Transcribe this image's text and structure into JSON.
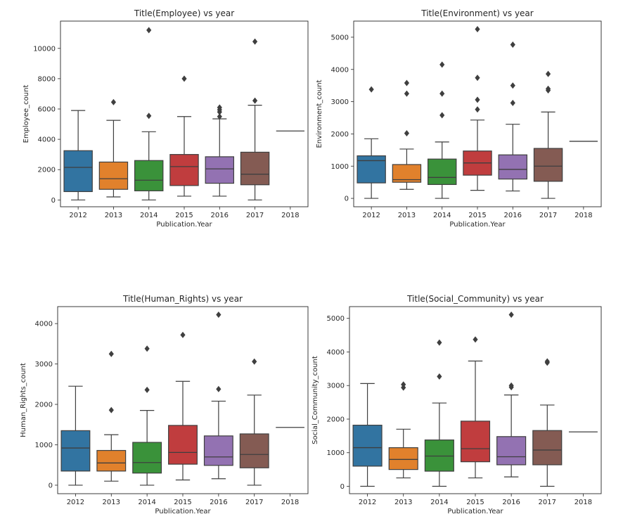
{
  "figure": {
    "layout": "2x2 grid of box plots"
  },
  "chart_data": [
    {
      "type": "box",
      "title": "Title(Employee) vs year",
      "xlabel": "Publication.Year",
      "ylabel": "Employee_count",
      "categories": [
        "2012",
        "2013",
        "2014",
        "2015",
        "2016",
        "2017",
        "2018"
      ],
      "ylim": [
        -450,
        11800
      ],
      "yticks": [
        0,
        2000,
        4000,
        6000,
        8000,
        10000
      ],
      "boxes": [
        {
          "category": "2012",
          "whisker_low": 0,
          "q1": 550,
          "median": 2150,
          "q3": 3250,
          "whisker_high": 5900,
          "outliers": [],
          "color": "#3274a1"
        },
        {
          "category": "2013",
          "whisker_low": 200,
          "q1": 700,
          "median": 1400,
          "q3": 2500,
          "whisker_high": 5250,
          "outliers": [
            6450
          ],
          "color": "#e1812c"
        },
        {
          "category": "2014",
          "whisker_low": 0,
          "q1": 600,
          "median": 1300,
          "q3": 2600,
          "whisker_high": 4500,
          "outliers": [
            5550,
            11200
          ],
          "color": "#3a923a"
        },
        {
          "category": "2015",
          "whisker_low": 250,
          "q1": 950,
          "median": 2200,
          "q3": 3000,
          "whisker_high": 5500,
          "outliers": [
            8000
          ],
          "color": "#c03d3e"
        },
        {
          "category": "2016",
          "whisker_low": 250,
          "q1": 1100,
          "median": 2050,
          "q3": 2850,
          "whisker_high": 5350,
          "outliers": [
            5500,
            5800,
            5950,
            6100
          ],
          "color": "#9372b2"
        },
        {
          "category": "2017",
          "whisker_low": 0,
          "q1": 1000,
          "median": 1700,
          "q3": 3150,
          "whisker_high": 6250,
          "outliers": [
            6550,
            10450
          ],
          "color": "#845b53"
        },
        {
          "category": "2018",
          "whisker_low": 4550,
          "q1": 4550,
          "median": 4550,
          "q3": 4550,
          "whisker_high": 4550,
          "outliers": [],
          "color": "#d684bd"
        }
      ]
    },
    {
      "type": "box",
      "title": "Title(Environment) vs year",
      "xlabel": "Publication.Year",
      "ylabel": "Environment_count",
      "categories": [
        "2012",
        "2013",
        "2014",
        "2015",
        "2016",
        "2017",
        "2018"
      ],
      "ylim": [
        -260,
        5500
      ],
      "yticks": [
        0,
        1000,
        2000,
        3000,
        4000,
        5000
      ],
      "boxes": [
        {
          "category": "2012",
          "whisker_low": 0,
          "q1": 480,
          "median": 1170,
          "q3": 1320,
          "whisker_high": 1850,
          "outliers": [
            3380
          ],
          "color": "#3274a1"
        },
        {
          "category": "2013",
          "whisker_low": 280,
          "q1": 500,
          "median": 580,
          "q3": 1050,
          "whisker_high": 1530,
          "outliers": [
            2020,
            3250,
            3580
          ],
          "color": "#e1812c"
        },
        {
          "category": "2014",
          "whisker_low": 0,
          "q1": 430,
          "median": 650,
          "q3": 1220,
          "whisker_high": 1750,
          "outliers": [
            2580,
            3250,
            4150
          ],
          "color": "#3a923a"
        },
        {
          "category": "2015",
          "whisker_low": 250,
          "q1": 720,
          "median": 1100,
          "q3": 1470,
          "whisker_high": 2430,
          "outliers": [
            2760,
            3060,
            3740,
            5250
          ],
          "color": "#c03d3e"
        },
        {
          "category": "2016",
          "whisker_low": 230,
          "q1": 600,
          "median": 900,
          "q3": 1350,
          "whisker_high": 2300,
          "outliers": [
            2960,
            3500,
            4770
          ],
          "color": "#9372b2"
        },
        {
          "category": "2017",
          "whisker_low": 0,
          "q1": 530,
          "median": 1000,
          "q3": 1550,
          "whisker_high": 2680,
          "outliers": [
            3350,
            3400,
            3860
          ],
          "color": "#845b53"
        },
        {
          "category": "2018",
          "whisker_low": 1770,
          "q1": 1770,
          "median": 1770,
          "q3": 1770,
          "whisker_high": 1770,
          "outliers": [],
          "color": "#d684bd"
        }
      ]
    },
    {
      "type": "box",
      "title": "Title(Human_Rights) vs year",
      "xlabel": "Publication.Year",
      "ylabel": "Human_Rights_count",
      "categories": [
        "2012",
        "2013",
        "2014",
        "2015",
        "2016",
        "2017",
        "2018"
      ],
      "ylim": [
        -210,
        4420
      ],
      "yticks": [
        0,
        1000,
        2000,
        3000,
        4000
      ],
      "boxes": [
        {
          "category": "2012",
          "whisker_low": 0,
          "q1": 350,
          "median": 920,
          "q3": 1350,
          "whisker_high": 2450,
          "outliers": [],
          "color": "#3274a1"
        },
        {
          "category": "2013",
          "whisker_low": 100,
          "q1": 350,
          "median": 550,
          "q3": 860,
          "whisker_high": 1250,
          "outliers": [
            1860,
            3250
          ],
          "color": "#e1812c"
        },
        {
          "category": "2014",
          "whisker_low": 0,
          "q1": 300,
          "median": 560,
          "q3": 1060,
          "whisker_high": 1850,
          "outliers": [
            2360,
            3380
          ],
          "color": "#3a923a"
        },
        {
          "category": "2015",
          "whisker_low": 130,
          "q1": 520,
          "median": 810,
          "q3": 1480,
          "whisker_high": 2570,
          "outliers": [
            3720
          ],
          "color": "#c03d3e"
        },
        {
          "category": "2016",
          "whisker_low": 160,
          "q1": 490,
          "median": 700,
          "q3": 1220,
          "whisker_high": 2080,
          "outliers": [
            2380,
            4220
          ],
          "color": "#9372b2"
        },
        {
          "category": "2017",
          "whisker_low": 0,
          "q1": 430,
          "median": 760,
          "q3": 1270,
          "whisker_high": 2230,
          "outliers": [
            3060
          ],
          "color": "#845b53"
        },
        {
          "category": "2018",
          "whisker_low": 1430,
          "q1": 1430,
          "median": 1430,
          "q3": 1430,
          "whisker_high": 1430,
          "outliers": [],
          "color": "#d684bd"
        }
      ]
    },
    {
      "type": "box",
      "title": "Title(Social_Community) vs year",
      "xlabel": "Publication.Year",
      "ylabel": "Social_Community_count",
      "categories": [
        "2012",
        "2013",
        "2014",
        "2015",
        "2016",
        "2017",
        "2018"
      ],
      "ylim": [
        -220,
        5350
      ],
      "yticks": [
        0,
        1000,
        2000,
        3000,
        4000,
        5000
      ],
      "boxes": [
        {
          "category": "2012",
          "whisker_low": 0,
          "q1": 600,
          "median": 1150,
          "q3": 1820,
          "whisker_high": 3060,
          "outliers": [],
          "color": "#3274a1"
        },
        {
          "category": "2013",
          "whisker_low": 250,
          "q1": 500,
          "median": 800,
          "q3": 1150,
          "whisker_high": 1700,
          "outliers": [
            2940,
            3030
          ],
          "color": "#e1812c"
        },
        {
          "category": "2014",
          "whisker_low": 0,
          "q1": 450,
          "median": 900,
          "q3": 1380,
          "whisker_high": 2480,
          "outliers": [
            3270,
            4280
          ],
          "color": "#3a923a"
        },
        {
          "category": "2015",
          "whisker_low": 250,
          "q1": 730,
          "median": 1120,
          "q3": 1940,
          "whisker_high": 3730,
          "outliers": [
            4370
          ],
          "color": "#c03d3e"
        },
        {
          "category": "2016",
          "whisker_low": 280,
          "q1": 640,
          "median": 880,
          "q3": 1480,
          "whisker_high": 2720,
          "outliers": [
            2950,
            3000,
            5110
          ],
          "color": "#9372b2"
        },
        {
          "category": "2017",
          "whisker_low": 0,
          "q1": 640,
          "median": 1080,
          "q3": 1660,
          "whisker_high": 2420,
          "outliers": [
            3680,
            3720
          ],
          "color": "#845b53"
        },
        {
          "category": "2018",
          "whisker_low": 1620,
          "q1": 1620,
          "median": 1620,
          "q3": 1620,
          "whisker_high": 1620,
          "outliers": [],
          "color": "#d684bd"
        }
      ]
    }
  ]
}
